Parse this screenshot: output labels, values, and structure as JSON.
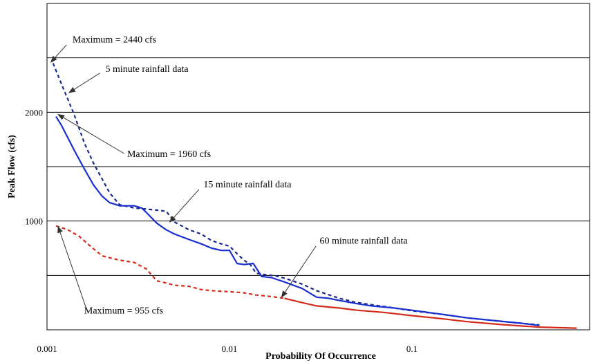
{
  "chart_data": {
    "type": "line",
    "title": "",
    "xlabel": "Probability Of Occurrence",
    "ylabel": "Peak Flow (cfs)",
    "x_scale": "log",
    "xlim": [
      0.001,
      0.8
    ],
    "ylim": [
      0,
      3000
    ],
    "x_ticks": [
      {
        "value": 0.001,
        "label": "0.001"
      },
      {
        "value": 0.01,
        "label": "0.01"
      },
      {
        "value": 0.1,
        "label": "0.1"
      }
    ],
    "y_ticks": [
      {
        "value": 1000,
        "label": "1000"
      },
      {
        "value": 2000,
        "label": "2000"
      }
    ],
    "gridlines_y": [
      500,
      1000,
      1500,
      2000,
      2500
    ],
    "grid": "horizontal",
    "legend": "none",
    "series": [
      {
        "id": "5min",
        "color": "#1a2a8c",
        "dash": "dashed",
        "points": [
          [
            0.00108,
            2450
          ],
          [
            0.0012,
            2260
          ],
          [
            0.0014,
            1990
          ],
          [
            0.0016,
            1720
          ],
          [
            0.0018,
            1530
          ],
          [
            0.002,
            1390
          ],
          [
            0.0022,
            1260
          ],
          [
            0.0025,
            1150
          ],
          [
            0.003,
            1120
          ],
          [
            0.0035,
            1110
          ],
          [
            0.004,
            1100
          ],
          [
            0.0045,
            1090
          ],
          [
            0.005,
            990
          ],
          [
            0.006,
            920
          ],
          [
            0.007,
            880
          ],
          [
            0.008,
            820
          ],
          [
            0.009,
            790
          ],
          [
            0.01,
            770
          ],
          [
            0.011,
            700
          ],
          [
            0.012,
            640
          ],
          [
            0.013,
            600
          ],
          [
            0.014,
            520
          ],
          [
            0.016,
            505
          ],
          [
            0.018,
            495
          ],
          [
            0.02,
            475
          ],
          [
            0.025,
            420
          ],
          [
            0.03,
            360
          ],
          [
            0.04,
            290
          ],
          [
            0.05,
            250
          ],
          [
            0.07,
            215
          ],
          [
            0.1,
            175
          ],
          [
            0.15,
            140
          ],
          [
            0.2,
            110
          ],
          [
            0.3,
            80
          ],
          [
            0.4,
            60
          ],
          [
            0.5,
            45
          ]
        ]
      },
      {
        "id": "15min",
        "color": "#1a2fcf",
        "dash": "solid",
        "points": [
          [
            0.00112,
            1960
          ],
          [
            0.0012,
            1880
          ],
          [
            0.0014,
            1660
          ],
          [
            0.0016,
            1480
          ],
          [
            0.0018,
            1330
          ],
          [
            0.002,
            1230
          ],
          [
            0.0022,
            1170
          ],
          [
            0.0025,
            1140
          ],
          [
            0.003,
            1140
          ],
          [
            0.0033,
            1120
          ],
          [
            0.0035,
            1080
          ],
          [
            0.004,
            980
          ],
          [
            0.0045,
            920
          ],
          [
            0.005,
            880
          ],
          [
            0.006,
            830
          ],
          [
            0.007,
            790
          ],
          [
            0.008,
            750
          ],
          [
            0.009,
            730
          ],
          [
            0.01,
            730
          ],
          [
            0.011,
            610
          ],
          [
            0.012,
            600
          ],
          [
            0.0135,
            610
          ],
          [
            0.015,
            490
          ],
          [
            0.017,
            480
          ],
          [
            0.02,
            440
          ],
          [
            0.025,
            380
          ],
          [
            0.03,
            300
          ],
          [
            0.035,
            290
          ],
          [
            0.04,
            270
          ],
          [
            0.05,
            240
          ],
          [
            0.06,
            220
          ],
          [
            0.08,
            200
          ],
          [
            0.1,
            180
          ],
          [
            0.15,
            140
          ],
          [
            0.2,
            110
          ],
          [
            0.3,
            80
          ],
          [
            0.4,
            60
          ],
          [
            0.5,
            40
          ]
        ]
      },
      {
        "id": "60min",
        "color": "#d42a1a",
        "dash": "dashed",
        "points": [
          [
            0.00112,
            955
          ],
          [
            0.0013,
            920
          ],
          [
            0.0015,
            860
          ],
          [
            0.0017,
            780
          ],
          [
            0.002,
            680
          ],
          [
            0.0025,
            640
          ],
          [
            0.003,
            620
          ],
          [
            0.0035,
            560
          ],
          [
            0.004,
            450
          ],
          [
            0.0045,
            430
          ],
          [
            0.005,
            410
          ],
          [
            0.006,
            400
          ],
          [
            0.007,
            370
          ],
          [
            0.008,
            360
          ],
          [
            0.01,
            350
          ],
          [
            0.012,
            340
          ],
          [
            0.014,
            320
          ],
          [
            0.016,
            310
          ],
          [
            0.018,
            300
          ],
          [
            0.02,
            290
          ]
        ]
      },
      {
        "id": "60min-tail",
        "color": "#d42a1a",
        "dash": "solid",
        "points": [
          [
            0.02,
            290
          ],
          [
            0.025,
            250
          ],
          [
            0.03,
            220
          ],
          [
            0.04,
            200
          ],
          [
            0.05,
            180
          ],
          [
            0.07,
            160
          ],
          [
            0.1,
            130
          ],
          [
            0.15,
            100
          ],
          [
            0.2,
            75
          ],
          [
            0.3,
            50
          ],
          [
            0.4,
            35
          ],
          [
            0.5,
            25
          ],
          [
            0.8,
            15
          ]
        ]
      }
    ],
    "annotations": [
      {
        "id": "anno-max-2440",
        "text": "Maximum = 2440 cfs",
        "label_at": [
          0.00138,
          2640
        ],
        "arrow_from": [
          0.00128,
          2620
        ],
        "arrow_to": [
          0.00105,
          2460
        ]
      },
      {
        "id": "anno-5min",
        "text": "5 minute rainfall data",
        "label_at": [
          0.00209,
          2370
        ],
        "arrow_from": [
          0.00195,
          2360
        ],
        "arrow_to": [
          0.00132,
          2180
        ]
      },
      {
        "id": "anno-max-1960",
        "text": "Maximum = 1960 cfs",
        "label_at": [
          0.00275,
          1590
        ],
        "arrow_from": [
          0.00265,
          1620
        ],
        "arrow_to": [
          0.00115,
          1980
        ]
      },
      {
        "id": "anno-15min",
        "text": "15 minute rainfall data",
        "label_at": [
          0.0072,
          1310
        ],
        "arrow_from": [
          0.0068,
          1290
        ],
        "arrow_to": [
          0.0047,
          990
        ]
      },
      {
        "id": "anno-60min",
        "text": "60 minute rainfall data",
        "label_at": [
          0.0312,
          790
        ],
        "arrow_from": [
          0.0298,
          770
        ],
        "arrow_to": [
          0.0193,
          300
        ]
      },
      {
        "id": "anno-max-955",
        "text": "Maximum = 955 cfs",
        "label_at": [
          0.0016,
          150
        ],
        "arrow_from": [
          0.00165,
          185
        ],
        "arrow_to": [
          0.00115,
          950
        ]
      }
    ]
  }
}
